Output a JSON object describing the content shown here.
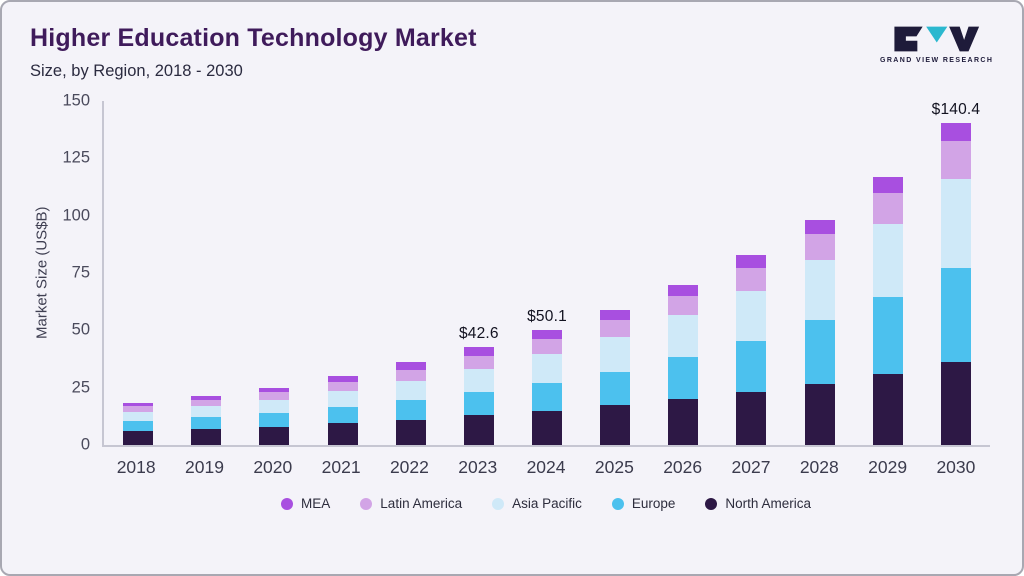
{
  "logo": {
    "text": "GRAND VIEW RESEARCH"
  },
  "chart_data": {
    "type": "bar",
    "stacked": true,
    "title": "Higher Education Technology Market",
    "subtitle": "Size, by Region, 2018 - 2030",
    "ylabel": "Market Size (US$B)",
    "ylim": [
      0,
      150
    ],
    "yticks": [
      0,
      25,
      50,
      75,
      100,
      125,
      150
    ],
    "grid": false,
    "legend_position": "bottom",
    "categories": [
      "2018",
      "2019",
      "2020",
      "2021",
      "2022",
      "2023",
      "2024",
      "2025",
      "2026",
      "2027",
      "2028",
      "2029",
      "2030"
    ],
    "series": [
      {
        "name": "North America",
        "color": "#2d1845",
        "values": [
          6,
          7,
          8,
          9.5,
          11,
          13,
          15,
          17.5,
          20,
          23,
          26.5,
          31,
          36
        ]
      },
      {
        "name": "Europe",
        "color": "#4cc1ee",
        "values": [
          4.5,
          5.2,
          6,
          7.2,
          8.6,
          10,
          12,
          14.5,
          18.5,
          22.5,
          28,
          33.5,
          41
        ]
      },
      {
        "name": "Asia Pacific",
        "color": "#cfe9f8",
        "values": [
          4,
          4.8,
          5.8,
          7,
          8.5,
          10.2,
          12.5,
          15,
          18,
          21.5,
          26,
          32,
          39
        ]
      },
      {
        "name": "Latin America",
        "color": "#d2a4e6",
        "values": [
          2.5,
          2.8,
          3.3,
          4,
          4.8,
          5.8,
          6.8,
          7.5,
          8.5,
          10,
          11.5,
          13.5,
          16.4
        ]
      },
      {
        "name": "MEA",
        "color": "#a84fe0",
        "values": [
          1.5,
          1.7,
          1.9,
          2.3,
          3.1,
          3.6,
          3.8,
          4.5,
          5,
          6,
          6,
          7,
          8
        ]
      }
    ],
    "totals": [
      18.5,
      21.5,
      25,
      30,
      36,
      42.6,
      50.1,
      59,
      70,
      83,
      98,
      117,
      140.4
    ],
    "annotations": [
      {
        "category": "2023",
        "label": "$42.6"
      },
      {
        "category": "2024",
        "label": "$50.1"
      },
      {
        "category": "2030",
        "label": "$140.4"
      }
    ],
    "legend": [
      "MEA",
      "Latin America",
      "Asia Pacific",
      "Europe",
      "North America"
    ]
  }
}
